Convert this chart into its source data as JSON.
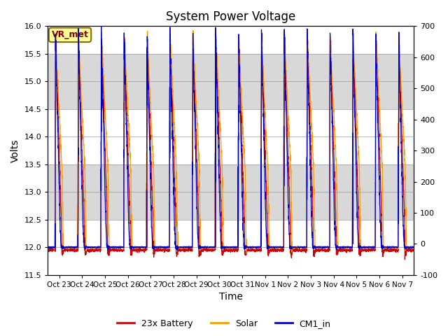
{
  "title": "System Power Voltage",
  "xlabel": "Time",
  "ylabel_left": "Volts",
  "ylim_left": [
    11.5,
    16.0
  ],
  "ylim_right": [
    -100,
    700
  ],
  "x_tick_labels": [
    "Oct 23",
    "Oct 24",
    "Oct 25",
    "Oct 26",
    "Oct 27",
    "Oct 28",
    "Oct 29",
    "Oct 30",
    "Oct 31",
    "Nov 1",
    "Nov 2",
    "Nov 3",
    "Nov 4",
    "Nov 5",
    "Nov 6",
    "Nov 7"
  ],
  "legend_labels": [
    "23x Battery",
    "Solar",
    "CM1_in"
  ],
  "legend_colors": [
    "#cc0000",
    "#ff9900",
    "#0000cc"
  ],
  "vr_met_label": "VR_met",
  "vr_met_text_color": "#8b0000",
  "vr_met_box_color": "#ffff99",
  "vr_met_edge_color": "#8b6914",
  "band_color": "#d8d8d8",
  "background_color": "#ffffff",
  "n_days": 16,
  "points_per_day": 200,
  "yticks_left": [
    11.5,
    12.0,
    12.5,
    13.0,
    13.5,
    14.0,
    14.5,
    15.0,
    15.5,
    16.0
  ],
  "yticks_right": [
    -100,
    0,
    100,
    200,
    300,
    400,
    500,
    600,
    700
  ]
}
